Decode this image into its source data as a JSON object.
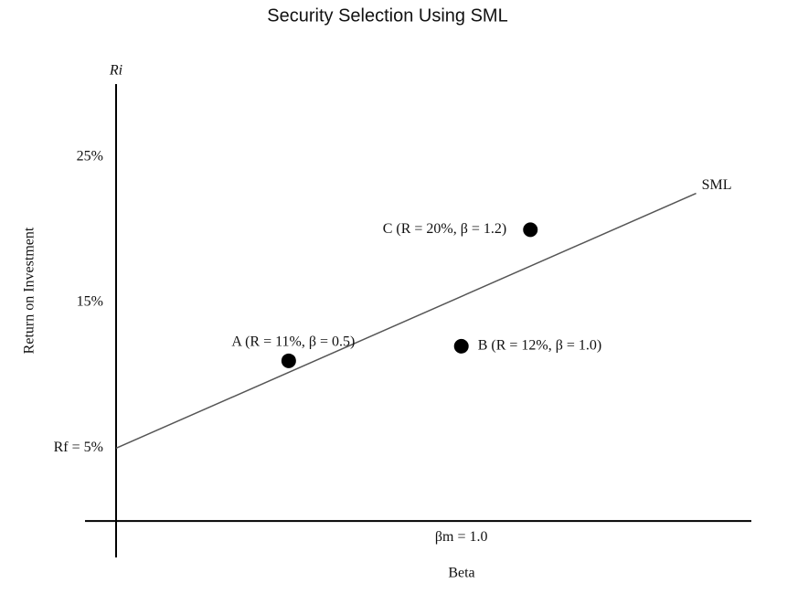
{
  "chart_data": {
    "type": "scatter",
    "title": "Security Selection Using SML",
    "xlabel": "Beta",
    "ylabel": "Return on Investment",
    "ylabel_top": "Ri",
    "xlim": [
      -0.09,
      1.84
    ],
    "ylim": [
      -2.5,
      30
    ],
    "yticks": [
      {
        "value": 25,
        "label": "25%"
      },
      {
        "value": 15,
        "label": "15%"
      },
      {
        "value": 5,
        "label": "Rf = 5%"
      }
    ],
    "xticks": [
      {
        "value": 1.0,
        "label": "βm = 1.0"
      }
    ],
    "line": {
      "name": "SML",
      "color": "#555555",
      "x": [
        0,
        1.68
      ],
      "values": [
        5,
        22.5
      ]
    },
    "points": {
      "color": "#000000",
      "labels": [
        "A (R = 11%, β = 0.5)",
        "B (R = 12%, β = 1.0)",
        "C (R = 20%, β = 1.2)"
      ],
      "x": [
        0.5,
        1.0,
        1.2
      ],
      "values": [
        11,
        12,
        20
      ]
    }
  }
}
